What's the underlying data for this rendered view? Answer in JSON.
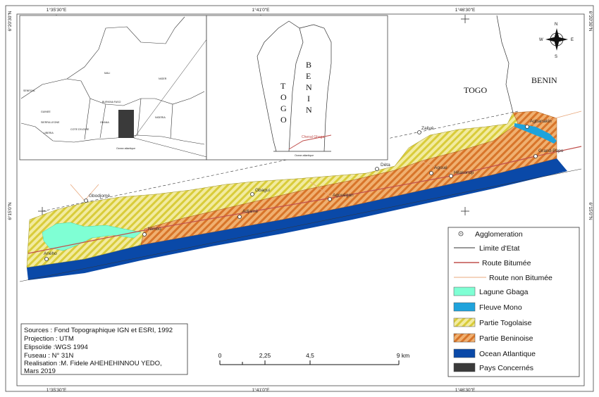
{
  "coords": {
    "top": [
      "1°35'30\"E",
      "1°41'0\"E",
      "1°46'30\"E"
    ],
    "bottom": [
      "1°35'30\"E",
      "1°41'0\"E",
      "1°46'30\"E"
    ],
    "left": [
      "6°20'30\"N",
      "6°15'0\"N"
    ],
    "right": [
      "6°20'30\"N",
      "6°15'0\"N"
    ]
  },
  "inset1": {
    "countries": [
      "MALI",
      "NIGER",
      "SENEGAL",
      "GUINEE",
      "BURKINA FASO",
      "NIGERIA",
      "SIERRA LEONE",
      "COTE D'IVOIRE",
      "GHANA",
      "LIBERIA"
    ],
    "ocean": "Ocean atlantique"
  },
  "inset2": {
    "togo_letters": [
      "T",
      "O",
      "G",
      "O"
    ],
    "benin_letters": [
      "B",
      "E",
      "N",
      "I",
      "N"
    ],
    "road": "Chenal Gbaga",
    "ocean": "Ocean atlantique"
  },
  "main": {
    "country_togo": "TOGO",
    "country_benin": "BENIN",
    "towns": [
      "Gbodjomé",
      "Zalivé",
      "Dèta",
      "Gbagui",
      "Agouégan",
      "Aného",
      "Adjamé",
      "Agbanakin",
      "Grand-Popo",
      "Hilakondji",
      "Agoué",
      "Nimbo",
      "Zanvi",
      "Agbodrafo"
    ]
  },
  "compass": {
    "n": "N",
    "s": "S",
    "e": "E",
    "w": "W"
  },
  "legend": {
    "items": [
      {
        "label": "Agglomeration",
        "type": "point"
      },
      {
        "label": "Limite d'Etat",
        "type": "line",
        "color": "#333333"
      },
      {
        "label": "Route Bitumée",
        "type": "line",
        "color": "#c0504d"
      },
      {
        "label": "Route  non Bitumée",
        "type": "line",
        "color": "#e8a87c"
      },
      {
        "label": "Lagune Gbaga",
        "type": "fill",
        "color": "#7fffd4"
      },
      {
        "label": "Fleuve Mono",
        "type": "fill",
        "color": "#1fa3dc"
      },
      {
        "label": "Partie Togolaise",
        "type": "hatch",
        "color": "#e6dc5a"
      },
      {
        "label": "Partie Beninoise",
        "type": "hatch",
        "color": "#e28a3c"
      },
      {
        "label": "Ocean Atlantique",
        "type": "fill",
        "color": "#0a49a8"
      },
      {
        "label": "Pays Concernés",
        "type": "fill",
        "color": "#3a3a3a"
      }
    ]
  },
  "source": [
    "Sources : Fond Topographique IGN et ESRI, 1992",
    "Projection : UTM",
    "Elipsoïde :WGS 1994",
    "Fuseau : N° 31N",
    "Realisation :M. Fidele AHEHEHINNOU YEDO,",
    "Mars 2019"
  ],
  "scale": {
    "ticks": [
      "0",
      "2,25",
      "4,5",
      "9 km"
    ]
  }
}
